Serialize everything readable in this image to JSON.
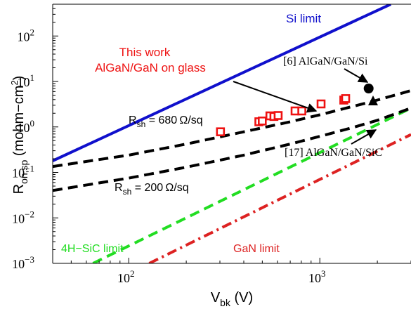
{
  "chart_data": {
    "type": "line",
    "title": "",
    "x_scale": "log",
    "y_scale": "log",
    "xlim": [
      40,
      3000
    ],
    "ylim": [
      0.001,
      500
    ],
    "grid": false,
    "xlabel": {
      "main": "V",
      "sub": "bk",
      "unit": " (V)"
    },
    "ylabel": {
      "main": "R",
      "sub": "on,sp",
      "unit": " (mohm−cm",
      "sup": "2",
      "close": ")"
    },
    "x_ticks": [
      {
        "value": 100,
        "base": "10",
        "exp": "2"
      },
      {
        "value": 1000,
        "base": "10",
        "exp": "3"
      }
    ],
    "y_ticks": [
      {
        "value": 0.001,
        "base": "10",
        "exp": "−3"
      },
      {
        "value": 0.01,
        "base": "10",
        "exp": "−2"
      },
      {
        "value": 0.1,
        "base": "10",
        "exp": "−1"
      },
      {
        "value": 1,
        "base": "10",
        "exp": "0"
      },
      {
        "value": 10,
        "base": "10",
        "exp": "1"
      },
      {
        "value": 100,
        "base": "10",
        "exp": "2"
      }
    ],
    "series": [
      {
        "key": "si_limit",
        "color": "#1010cc",
        "dash": "solid",
        "x": [
          40,
          2350
        ],
        "y": [
          0.18,
          500
        ]
      },
      {
        "key": "sic_limit",
        "color": "#22dd22",
        "dash": "dash",
        "x": [
          65,
          3000
        ],
        "y": [
          0.001,
          2.6
        ]
      },
      {
        "key": "gan_limit",
        "color": "#dd2222",
        "dash": "dashdot",
        "x": [
          128,
          3000
        ],
        "y": [
          0.001,
          0.68
        ]
      },
      {
        "key": "rsh_680",
        "color": "#000000",
        "dash": "dash",
        "x": [
          40,
          100,
          200,
          400,
          700,
          1000,
          1500,
          2000,
          3000
        ],
        "y": [
          0.135,
          0.24,
          0.42,
          0.78,
          1.3,
          1.85,
          2.85,
          3.9,
          6.3
        ]
      },
      {
        "key": "rsh_200",
        "color": "#000000",
        "dash": "dash",
        "x": [
          40,
          100,
          200,
          400,
          700,
          1000,
          1500,
          2000,
          3000
        ],
        "y": [
          0.04,
          0.075,
          0.13,
          0.24,
          0.42,
          0.62,
          0.98,
          1.4,
          2.6
        ]
      }
    ],
    "this_work_points": {
      "color": "#ee1111",
      "x": [
        302,
        480,
        500,
        548,
        575,
        605,
        742,
        805,
        1015,
        1335,
        1365
      ],
      "y": [
        0.78,
        1.3,
        1.35,
        1.75,
        1.7,
        1.78,
        2.25,
        2.25,
        3.2,
        3.9,
        4.2
      ]
    },
    "ref_points": [
      {
        "key": "ref6",
        "shape": "circle",
        "x": 1800,
        "y": 7.0
      },
      {
        "key": "ref17",
        "shape": "triangle",
        "x": 1900,
        "y": 3.7
      }
    ],
    "annotations": {
      "si_limit": {
        "text": "Si limit",
        "color": "#1010cc"
      },
      "this_work_1": {
        "text": "This work",
        "color": "#ee1111"
      },
      "this_work_2": {
        "text": "AlGaN/GaN on glass",
        "color": "#ee1111"
      },
      "ref6": {
        "text": "[6] AlGaN/GaN/Si",
        "color": "#000000"
      },
      "ref17": {
        "text": "[17] AlGaN/GaN/SiC",
        "color": "#000000"
      },
      "rsh_680": {
        "main": "R",
        "sub": "sh",
        "rest": " = 680 Ω/sq",
        "color": "#000000"
      },
      "rsh_200": {
        "main": "R",
        "sub": "sh",
        "rest": " = 200 Ω/sq",
        "color": "#000000"
      },
      "sic_limit": {
        "text": "4H−SiC limit",
        "color": "#22dd22"
      },
      "gan_limit": {
        "text": "GaN limit",
        "color": "#dd2222"
      }
    }
  }
}
